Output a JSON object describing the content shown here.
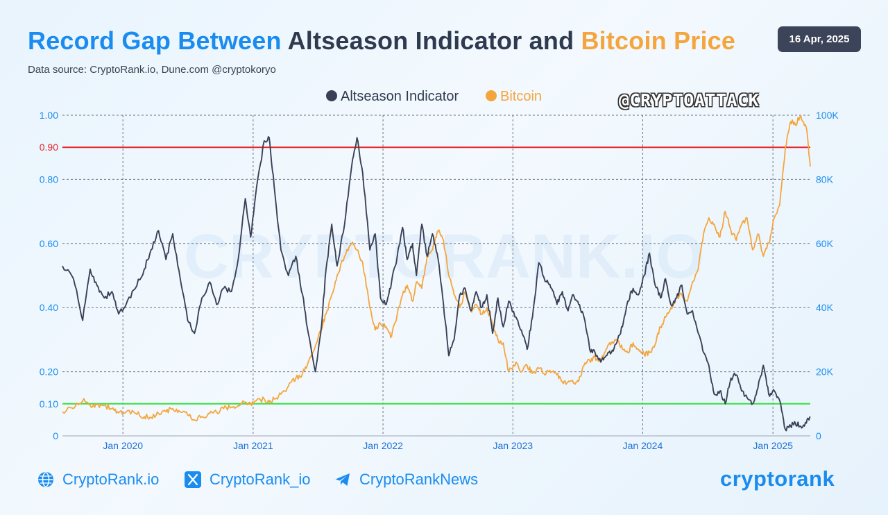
{
  "header": {
    "title_part1": "Record Gap Between",
    "title_part2": "Altseason Indicator and",
    "title_part3": "Bitcoin Price",
    "subtitle": "Data source: CryptoRank.io, Dune.com @cryptokoryo",
    "date": "16 Apr, 2025",
    "watermark": "@CRYPTOATTACK",
    "bg_watermark": "CRYPTORANK.IO"
  },
  "colors": {
    "altseason": "#3a4157",
    "bitcoin": "#f5a53d",
    "upper_threshold": "#e8262b",
    "lower_threshold": "#33e13d",
    "axis_blue": "#1a8cf0"
  },
  "chart_data": {
    "type": "line",
    "title": "Record Gap Between Altseason Indicator and Bitcoin Price",
    "legend_placement": "top-center",
    "grid": true,
    "x_ticks": [
      "Jan 2020",
      "Jan 2021",
      "Jan 2022",
      "Jan 2023",
      "Jan 2024",
      "Jan 2025"
    ],
    "y_left": {
      "ticks": [
        "1.00",
        "0.90",
        "0.80",
        "0.60",
        "0.40",
        "0.20",
        "0.10",
        "0"
      ],
      "range": [
        0,
        1.0
      ]
    },
    "y_right": {
      "ticks": [
        "100K",
        "80K",
        "60K",
        "40K",
        "20K",
        "0"
      ],
      "range": [
        0,
        100000
      ]
    },
    "threshold_lines": [
      {
        "value": 0.9,
        "label": "0.90",
        "color": "#e8262b"
      },
      {
        "value": 0.1,
        "label": "0.10",
        "color": "#33e13d"
      }
    ],
    "x_range": [
      "2019-07-15",
      "2025-04-16"
    ],
    "series": [
      {
        "name": "Altseason Indicator",
        "axis": "left",
        "points": [
          [
            "2019-07-15",
            0.53
          ],
          [
            "2019-08-15",
            0.49
          ],
          [
            "2019-09-10",
            0.36
          ],
          [
            "2019-10-01",
            0.52
          ],
          [
            "2019-10-20",
            0.47
          ],
          [
            "2019-11-10",
            0.43
          ],
          [
            "2019-12-01",
            0.45
          ],
          [
            "2019-12-20",
            0.38
          ],
          [
            "2020-01-10",
            0.41
          ],
          [
            "2020-02-05",
            0.46
          ],
          [
            "2020-03-01",
            0.52
          ],
          [
            "2020-03-20",
            0.58
          ],
          [
            "2020-04-10",
            0.64
          ],
          [
            "2020-05-01",
            0.55
          ],
          [
            "2020-05-20",
            0.63
          ],
          [
            "2020-06-10",
            0.49
          ],
          [
            "2020-07-01",
            0.36
          ],
          [
            "2020-07-20",
            0.32
          ],
          [
            "2020-08-10",
            0.43
          ],
          [
            "2020-09-01",
            0.48
          ],
          [
            "2020-09-20",
            0.41
          ],
          [
            "2020-10-10",
            0.46
          ],
          [
            "2020-11-01",
            0.45
          ],
          [
            "2020-11-20",
            0.55
          ],
          [
            "2020-12-10",
            0.74
          ],
          [
            "2020-12-25",
            0.62
          ],
          [
            "2021-01-10",
            0.77
          ],
          [
            "2021-02-01",
            0.92
          ],
          [
            "2021-02-15",
            0.93
          ],
          [
            "2021-03-01",
            0.78
          ],
          [
            "2021-03-20",
            0.58
          ],
          [
            "2021-04-10",
            0.5
          ],
          [
            "2021-05-01",
            0.56
          ],
          [
            "2021-05-20",
            0.44
          ],
          [
            "2021-06-05",
            0.32
          ],
          [
            "2021-06-25",
            0.2
          ],
          [
            "2021-07-10",
            0.32
          ],
          [
            "2021-07-25",
            0.52
          ],
          [
            "2021-08-10",
            0.66
          ],
          [
            "2021-08-25",
            0.53
          ],
          [
            "2021-09-15",
            0.66
          ],
          [
            "2021-10-05",
            0.84
          ],
          [
            "2021-10-20",
            0.93
          ],
          [
            "2021-11-05",
            0.82
          ],
          [
            "2021-11-25",
            0.58
          ],
          [
            "2021-12-10",
            0.63
          ],
          [
            "2021-12-25",
            0.43
          ],
          [
            "2022-01-10",
            0.41
          ],
          [
            "2022-01-25",
            0.48
          ],
          [
            "2022-02-10",
            0.56
          ],
          [
            "2022-02-25",
            0.65
          ],
          [
            "2022-03-10",
            0.55
          ],
          [
            "2022-03-25",
            0.6
          ],
          [
            "2022-04-05",
            0.5
          ],
          [
            "2022-04-20",
            0.66
          ],
          [
            "2022-05-05",
            0.56
          ],
          [
            "2022-05-20",
            0.63
          ],
          [
            "2022-06-05",
            0.55
          ],
          [
            "2022-06-20",
            0.41
          ],
          [
            "2022-07-05",
            0.25
          ],
          [
            "2022-07-20",
            0.3
          ],
          [
            "2022-08-05",
            0.44
          ],
          [
            "2022-08-20",
            0.46
          ],
          [
            "2022-09-05",
            0.39
          ],
          [
            "2022-09-20",
            0.45
          ],
          [
            "2022-10-05",
            0.4
          ],
          [
            "2022-10-20",
            0.44
          ],
          [
            "2022-11-05",
            0.32
          ],
          [
            "2022-11-20",
            0.43
          ],
          [
            "2022-12-05",
            0.34
          ],
          [
            "2022-12-20",
            0.42
          ],
          [
            "2023-01-10",
            0.37
          ],
          [
            "2023-01-25",
            0.33
          ],
          [
            "2023-02-10",
            0.27
          ],
          [
            "2023-02-25",
            0.37
          ],
          [
            "2023-03-15",
            0.54
          ],
          [
            "2023-04-05",
            0.48
          ],
          [
            "2023-04-20",
            0.46
          ],
          [
            "2023-05-05",
            0.41
          ],
          [
            "2023-05-20",
            0.45
          ],
          [
            "2023-06-05",
            0.39
          ],
          [
            "2023-06-20",
            0.44
          ],
          [
            "2023-07-05",
            0.41
          ],
          [
            "2023-07-20",
            0.37
          ],
          [
            "2023-08-05",
            0.27
          ],
          [
            "2023-08-20",
            0.26
          ],
          [
            "2023-09-05",
            0.23
          ],
          [
            "2023-09-20",
            0.25
          ],
          [
            "2023-10-05",
            0.26
          ],
          [
            "2023-10-20",
            0.29
          ],
          [
            "2023-11-05",
            0.34
          ],
          [
            "2023-11-20",
            0.42
          ],
          [
            "2023-12-05",
            0.46
          ],
          [
            "2023-12-20",
            0.44
          ],
          [
            "2024-01-05",
            0.5
          ],
          [
            "2024-01-20",
            0.57
          ],
          [
            "2024-02-05",
            0.47
          ],
          [
            "2024-02-20",
            0.43
          ],
          [
            "2024-03-05",
            0.49
          ],
          [
            "2024-03-20",
            0.41
          ],
          [
            "2024-04-05",
            0.43
          ],
          [
            "2024-04-20",
            0.47
          ],
          [
            "2024-05-05",
            0.38
          ],
          [
            "2024-05-20",
            0.39
          ],
          [
            "2024-06-05",
            0.32
          ],
          [
            "2024-06-20",
            0.26
          ],
          [
            "2024-07-05",
            0.22
          ],
          [
            "2024-07-20",
            0.13
          ],
          [
            "2024-08-05",
            0.14
          ],
          [
            "2024-08-20",
            0.1
          ],
          [
            "2024-09-05",
            0.18
          ],
          [
            "2024-09-20",
            0.19
          ],
          [
            "2024-10-05",
            0.14
          ],
          [
            "2024-10-20",
            0.12
          ],
          [
            "2024-11-05",
            0.1
          ],
          [
            "2024-11-20",
            0.15
          ],
          [
            "2024-12-05",
            0.22
          ],
          [
            "2024-12-20",
            0.13
          ],
          [
            "2025-01-05",
            0.14
          ],
          [
            "2025-01-20",
            0.11
          ],
          [
            "2025-02-05",
            0.02
          ],
          [
            "2025-02-20",
            0.03
          ],
          [
            "2025-03-05",
            0.04
          ],
          [
            "2025-03-20",
            0.03
          ],
          [
            "2025-04-05",
            0.04
          ],
          [
            "2025-04-16",
            0.06
          ]
        ]
      },
      {
        "name": "Bitcoin",
        "axis": "right",
        "points": [
          [
            "2019-07-15",
            7500
          ],
          [
            "2019-08-15",
            8500
          ],
          [
            "2019-09-10",
            11000
          ],
          [
            "2019-10-01",
            9500
          ],
          [
            "2019-10-20",
            9800
          ],
          [
            "2019-11-10",
            9500
          ],
          [
            "2019-12-01",
            8500
          ],
          [
            "2019-12-20",
            7200
          ],
          [
            "2020-01-10",
            7500
          ],
          [
            "2020-02-05",
            7000
          ],
          [
            "2020-03-01",
            6000
          ],
          [
            "2020-03-20",
            5800
          ],
          [
            "2020-04-10",
            7000
          ],
          [
            "2020-05-01",
            7500
          ],
          [
            "2020-05-20",
            8500
          ],
          [
            "2020-06-10",
            7500
          ],
          [
            "2020-07-01",
            6500
          ],
          [
            "2020-07-20",
            5000
          ],
          [
            "2020-08-10",
            6000
          ],
          [
            "2020-09-01",
            7000
          ],
          [
            "2020-09-20",
            7500
          ],
          [
            "2020-10-10",
            8500
          ],
          [
            "2020-11-01",
            9000
          ],
          [
            "2020-11-20",
            9500
          ],
          [
            "2020-12-10",
            10500
          ],
          [
            "2020-12-25",
            10000
          ],
          [
            "2021-01-10",
            11000
          ],
          [
            "2021-02-01",
            11500
          ],
          [
            "2021-02-15",
            10500
          ],
          [
            "2021-03-01",
            11500
          ],
          [
            "2021-03-20",
            13000
          ],
          [
            "2021-04-10",
            15500
          ],
          [
            "2021-05-01",
            18000
          ],
          [
            "2021-05-20",
            19500
          ],
          [
            "2021-06-05",
            23000
          ],
          [
            "2021-06-25",
            28000
          ],
          [
            "2021-07-10",
            33000
          ],
          [
            "2021-07-25",
            38000
          ],
          [
            "2021-08-10",
            44000
          ],
          [
            "2021-08-25",
            50000
          ],
          [
            "2021-09-15",
            56000
          ],
          [
            "2021-10-05",
            60000
          ],
          [
            "2021-10-20",
            58000
          ],
          [
            "2021-11-05",
            54000
          ],
          [
            "2021-11-25",
            40000
          ],
          [
            "2021-12-10",
            33000
          ],
          [
            "2021-12-25",
            35000
          ],
          [
            "2022-01-10",
            34000
          ],
          [
            "2022-01-25",
            31000
          ],
          [
            "2022-02-10",
            38000
          ],
          [
            "2022-02-25",
            44000
          ],
          [
            "2022-03-10",
            47000
          ],
          [
            "2022-03-25",
            42000
          ],
          [
            "2022-04-05",
            48000
          ],
          [
            "2022-04-20",
            46000
          ],
          [
            "2022-05-05",
            56000
          ],
          [
            "2022-05-20",
            58000
          ],
          [
            "2022-06-05",
            64000
          ],
          [
            "2022-06-20",
            61000
          ],
          [
            "2022-07-05",
            50000
          ],
          [
            "2022-07-20",
            44000
          ],
          [
            "2022-08-05",
            40000
          ],
          [
            "2022-08-20",
            45000
          ],
          [
            "2022-09-05",
            39000
          ],
          [
            "2022-09-20",
            41000
          ],
          [
            "2022-10-05",
            38000
          ],
          [
            "2022-10-20",
            40000
          ],
          [
            "2022-11-05",
            35000
          ],
          [
            "2022-11-20",
            30000
          ],
          [
            "2022-12-05",
            29000
          ],
          [
            "2022-12-20",
            20000
          ],
          [
            "2023-01-10",
            23000
          ],
          [
            "2023-01-25",
            20000
          ],
          [
            "2023-02-10",
            22000
          ],
          [
            "2023-02-25",
            19500
          ],
          [
            "2023-03-15",
            21000
          ],
          [
            "2023-04-05",
            19500
          ],
          [
            "2023-04-20",
            20000
          ],
          [
            "2023-05-05",
            19000
          ],
          [
            "2023-05-20",
            17000
          ],
          [
            "2023-06-05",
            16800
          ],
          [
            "2023-06-20",
            16500
          ],
          [
            "2023-07-05",
            17000
          ],
          [
            "2023-07-20",
            22000
          ],
          [
            "2023-08-05",
            23500
          ],
          [
            "2023-08-20",
            24500
          ],
          [
            "2023-09-05",
            23000
          ],
          [
            "2023-09-20",
            27000
          ],
          [
            "2023-10-05",
            29000
          ],
          [
            "2023-10-20",
            30000
          ],
          [
            "2023-11-05",
            27000
          ],
          [
            "2023-11-20",
            26000
          ],
          [
            "2023-12-05",
            29000
          ],
          [
            "2023-12-20",
            27000
          ],
          [
            "2024-01-05",
            25500
          ],
          [
            "2024-01-20",
            26000
          ],
          [
            "2024-02-05",
            28500
          ],
          [
            "2024-02-20",
            34000
          ],
          [
            "2024-03-05",
            37000
          ],
          [
            "2024-03-20",
            40000
          ],
          [
            "2024-04-05",
            43000
          ],
          [
            "2024-04-20",
            44000
          ],
          [
            "2024-05-05",
            42000
          ],
          [
            "2024-05-20",
            48000
          ],
          [
            "2024-06-05",
            52000
          ],
          [
            "2024-06-20",
            63000
          ],
          [
            "2024-07-05",
            68000
          ],
          [
            "2024-07-20",
            66000
          ],
          [
            "2024-08-05",
            62000
          ],
          [
            "2024-08-20",
            70000
          ],
          [
            "2024-09-05",
            64000
          ],
          [
            "2024-09-20",
            61000
          ],
          [
            "2024-10-05",
            66000
          ],
          [
            "2024-10-20",
            68000
          ],
          [
            "2024-11-05",
            58000
          ],
          [
            "2024-11-20",
            63000
          ],
          [
            "2024-12-05",
            56000
          ],
          [
            "2024-12-20",
            60000
          ],
          [
            "2025-01-05",
            68000
          ],
          [
            "2025-01-20",
            72000
          ],
          [
            "2025-02-05",
            90000
          ],
          [
            "2025-02-20",
            98000
          ],
          [
            "2025-03-05",
            97000
          ],
          [
            "2025-03-20",
            100000
          ],
          [
            "2025-04-05",
            96000
          ],
          [
            "2025-04-16",
            84000
          ]
        ]
      }
    ]
  },
  "footer": {
    "website": "CryptoRank.io",
    "x_handle": "CryptoRank_io",
    "telegram": "CryptoRankNews",
    "brand": "cryptorank",
    "website_icon": "globe-icon",
    "x_icon": "x-logo-icon",
    "telegram_icon": "telegram-icon"
  }
}
